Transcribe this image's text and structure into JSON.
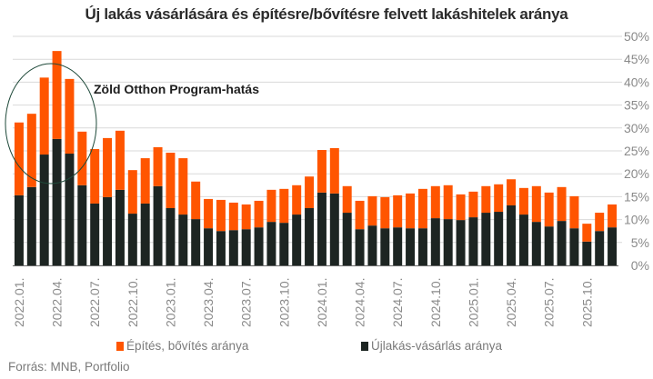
{
  "chart_data": {
    "type": "bar",
    "stacked": true,
    "title": "Új lakás vásárlására és építésre/bővítésre felvett lakáshitelek aránya",
    "xlabel": "",
    "ylabel": "",
    "ylim": [
      0,
      50
    ],
    "y_ticks": [
      "0%",
      "5%",
      "10%",
      "15%",
      "20%",
      "25%",
      "30%",
      "35%",
      "40%",
      "45%",
      "50%"
    ],
    "y_axis_position": "right",
    "grid": true,
    "categories": [
      "2022.01.",
      "2022.02.",
      "2022.03.",
      "2022.04.",
      "2022.05.",
      "2022.06.",
      "2022.07.",
      "2022.08.",
      "2022.09.",
      "2022.10.",
      "2022.11.",
      "2022.12.",
      "2023.01.",
      "2023.02.",
      "2023.03.",
      "2023.04.",
      "2023.05.",
      "2023.06.",
      "2023.07.",
      "2023.08.",
      "2023.09.",
      "2023.10.",
      "2023.11.",
      "2023.12.",
      "2024.01.",
      "2024.02.",
      "2024.03.",
      "2024.04.",
      "2024.05.",
      "2024.06.",
      "2024.07.",
      "2024.08.",
      "2024.09.",
      "2024.10.",
      "2024.11.",
      "2024.12.",
      "2025.01.",
      "2025.02.",
      "2025.03.",
      "2025.04.",
      "2025.05.",
      "2025.06.",
      "2025.07.",
      "2025.08.",
      "2025.09.",
      "2025.10.",
      "2025.11.",
      "2025.12."
    ],
    "x_tick_labels": [
      "2022.01.",
      "2022.04.",
      "2022.07.",
      "2022.10.",
      "2023.01.",
      "2023.04.",
      "2023.07.",
      "2023.10.",
      "2024.01.",
      "2024.04.",
      "2024.07.",
      "2024.10.",
      "2025.01.",
      "2025.04.",
      "2025.07.",
      "2025.10."
    ],
    "series": [
      {
        "name": "Újlakás-vásárlás aránya",
        "color": "#1d2522",
        "values": [
          15.3,
          17.1,
          24.2,
          27.6,
          24.4,
          17.5,
          13.5,
          14.9,
          16.5,
          11.3,
          13.5,
          17.3,
          12.5,
          11.1,
          10.1,
          8.1,
          7.5,
          7.7,
          7.9,
          8.3,
          9.5,
          9.3,
          11.1,
          12.5,
          15.9,
          15.7,
          11.5,
          7.9,
          8.7,
          8.1,
          8.3,
          8.1,
          8.1,
          10.3,
          10.1,
          9.9,
          10.5,
          11.5,
          11.7,
          13.1,
          11.1,
          9.5,
          8.5,
          9.7,
          8.1,
          5.2,
          7.5,
          8.3
        ]
      },
      {
        "name": "Építés, bővítés aránya",
        "color": "#ff5500",
        "values": [
          15.9,
          16.0,
          16.8,
          19.2,
          16.3,
          11.7,
          11.9,
          12.9,
          12.9,
          9.5,
          9.9,
          8.5,
          12.1,
          12.3,
          8.2,
          6.4,
          6.8,
          6.0,
          5.4,
          5.8,
          7.0,
          7.4,
          6.4,
          6.9,
          9.3,
          9.9,
          5.8,
          6.2,
          6.4,
          6.8,
          7.0,
          7.6,
          8.6,
          7.0,
          7.4,
          5.6,
          5.6,
          5.8,
          6.0,
          5.7,
          5.8,
          7.8,
          7.4,
          7.4,
          7.0,
          3.9,
          4.0,
          5.0
        ]
      }
    ],
    "legend": [
      "Építés, bővítés aránya",
      "Újlakás-vásárlás aránya"
    ],
    "legend_position": "bottom",
    "annotation": {
      "text": "Zöld Otthon Program-hatás",
      "highlights": [
        "2022.01.",
        "2022.02.",
        "2022.03.",
        "2022.04.",
        "2022.05."
      ],
      "circle_color": "#1f4a3a"
    },
    "source": "Forrás: MNB, Portfolio"
  },
  "colors": {
    "orange": "#ff5500",
    "dark": "#1d2522",
    "grid": "#d9d9d9",
    "tick_text": "#8a8a8a"
  }
}
